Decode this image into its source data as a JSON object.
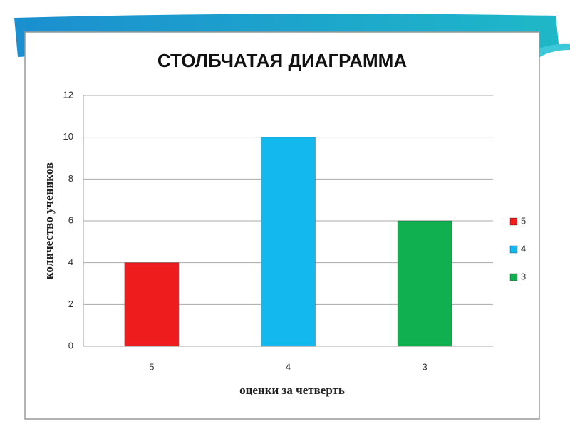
{
  "chart_data": {
    "type": "bar",
    "title": "СТОЛБЧАТАЯ ДИАГРАММА",
    "x_label": "оценки за четверть",
    "y_label": "количество учеников",
    "categories": [
      "5",
      "4",
      "3"
    ],
    "values": [
      4,
      10,
      6
    ],
    "colors": [
      "#ee1c1c",
      "#12b8ee",
      "#10b050"
    ],
    "ylim": [
      0,
      12
    ],
    "yticks": [
      0,
      2,
      4,
      6,
      8,
      10,
      12
    ],
    "grid": true,
    "legend": "right"
  }
}
